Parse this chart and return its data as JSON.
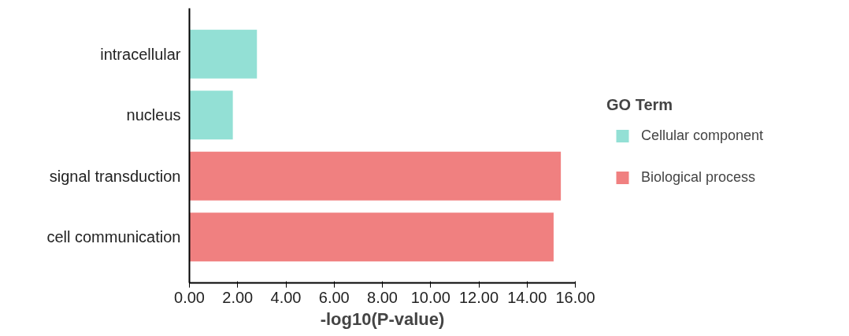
{
  "chart_data": {
    "type": "bar",
    "orientation": "horizontal",
    "xlabel": "-log10(P-value)",
    "legend_title": "GO Term",
    "legend": "right",
    "grid": false,
    "categories": [
      "intracellular",
      "nucleus",
      "signal transduction",
      "cell communication"
    ],
    "series": [
      {
        "name": "Cellular component",
        "color": "#93e0d5",
        "values": [
          2.8,
          1.8,
          null,
          null
        ]
      },
      {
        "name": "Biological process",
        "color": "#f08080",
        "values": [
          null,
          null,
          15.4,
          15.1
        ]
      }
    ],
    "xlim": [
      0,
      16
    ],
    "xticks": [
      {
        "value": 0,
        "label": "0.00"
      },
      {
        "value": 2,
        "label": "2.00"
      },
      {
        "value": 4,
        "label": "4.00"
      },
      {
        "value": 6,
        "label": "6.00"
      },
      {
        "value": 8,
        "label": "8.00"
      },
      {
        "value": 10,
        "label": "10.00"
      },
      {
        "value": 12,
        "label": "12.00"
      },
      {
        "value": 14,
        "label": "14.00"
      },
      {
        "value": 16,
        "label": "16.00"
      }
    ]
  }
}
